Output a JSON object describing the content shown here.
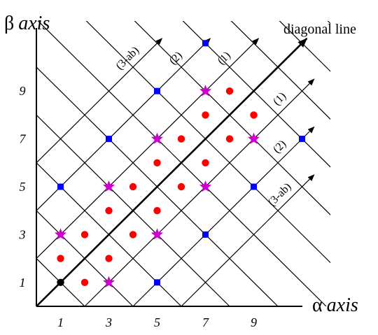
{
  "axes": {
    "x_symbol": "α",
    "x_word": "axis",
    "y_symbol": "β",
    "y_word": "axis",
    "x_ticks": [
      "1",
      "3",
      "5",
      "7",
      "9"
    ],
    "y_ticks": [
      "1",
      "3",
      "5",
      "7",
      "9"
    ]
  },
  "diagonal": {
    "label": "diagonal line"
  },
  "upper_arrows": [
    {
      "label": "(3-ab)",
      "offset": 6
    },
    {
      "label": "(2)",
      "offset": 4
    },
    {
      "label": "(1)",
      "offset": 2
    }
  ],
  "lower_arrows": [
    {
      "label": "(1)",
      "offset": -2
    },
    {
      "label": "(2)",
      "offset": -4
    },
    {
      "label": "(3-ab)",
      "offset": -6
    }
  ],
  "colors": {
    "black_point": "#000000",
    "red_point": "#ff0000",
    "blue_point": "#0000ff",
    "star_point": "#cc00cc",
    "lines": "#000000"
  },
  "points": {
    "black": [
      [
        1,
        1
      ]
    ],
    "red": [
      [
        2,
        1
      ],
      [
        1,
        2
      ],
      [
        2,
        3
      ],
      [
        3,
        2
      ],
      [
        3,
        4
      ],
      [
        4,
        3
      ],
      [
        4,
        5
      ],
      [
        5,
        4
      ],
      [
        5,
        6
      ],
      [
        6,
        5
      ],
      [
        6,
        7
      ],
      [
        7,
        6
      ],
      [
        7,
        8
      ],
      [
        8,
        7
      ],
      [
        8,
        9
      ],
      [
        9,
        8
      ]
    ],
    "star": [
      [
        3,
        1
      ],
      [
        1,
        3
      ],
      [
        5,
        3
      ],
      [
        3,
        5
      ],
      [
        5,
        7
      ],
      [
        7,
        5
      ],
      [
        7,
        9
      ],
      [
        9,
        7
      ]
    ],
    "blue": [
      [
        5,
        1
      ],
      [
        7,
        3
      ],
      [
        9,
        5
      ],
      [
        11,
        7
      ],
      [
        1,
        5
      ],
      [
        3,
        7
      ],
      [
        5,
        9
      ],
      [
        7,
        11
      ]
    ]
  }
}
